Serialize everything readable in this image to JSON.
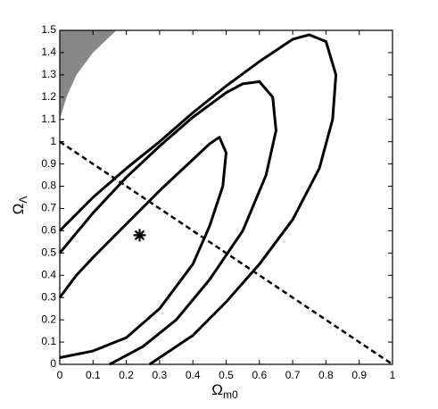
{
  "chart_data": {
    "type": "contour",
    "xlabel": {
      "main": "Ω",
      "sub": "m0"
    },
    "ylabel": {
      "main": "Ω",
      "sub": "Λ"
    },
    "xlim": [
      0,
      1
    ],
    "ylim": [
      0,
      1.5
    ],
    "xticks": [
      0,
      0.1,
      0.2,
      0.3,
      0.4,
      0.5,
      0.6,
      0.7,
      0.8,
      0.9,
      1
    ],
    "yticks": [
      0,
      0.1,
      0.2,
      0.3,
      0.4,
      0.5,
      0.6,
      0.7,
      0.8,
      0.9,
      1,
      1.1,
      1.2,
      1.3,
      1.4,
      1.5
    ],
    "contours": [
      {
        "color": "#000000",
        "x": [
          0,
          0.05,
          0.1,
          0.2,
          0.3,
          0.4,
          0.45,
          0.48,
          0.5,
          0.49,
          0.45,
          0.4,
          0.3,
          0.2,
          0.1,
          0
        ],
        "y": [
          0.3,
          0.4,
          0.48,
          0.63,
          0.78,
          0.92,
          0.99,
          1.02,
          0.95,
          0.8,
          0.62,
          0.45,
          0.25,
          0.12,
          0.06,
          0.03
        ]
      },
      {
        "color": "#000000",
        "x": [
          0,
          0.1,
          0.2,
          0.3,
          0.4,
          0.5,
          0.55,
          0.6,
          0.64,
          0.65,
          0.62,
          0.55,
          0.45,
          0.35,
          0.25,
          0.15
        ],
        "y": [
          0.5,
          0.68,
          0.84,
          0.98,
          1.11,
          1.22,
          1.26,
          1.27,
          1.2,
          1.05,
          0.85,
          0.6,
          0.38,
          0.2,
          0.08,
          0
        ]
      },
      {
        "color": "#000000",
        "x": [
          0,
          0.1,
          0.2,
          0.3,
          0.4,
          0.5,
          0.6,
          0.7,
          0.75,
          0.8,
          0.83,
          0.82,
          0.78,
          0.7,
          0.6,
          0.5,
          0.4,
          0.27
        ],
        "y": [
          0.6,
          0.75,
          0.88,
          1.0,
          1.13,
          1.25,
          1.36,
          1.46,
          1.48,
          1.45,
          1.3,
          1.1,
          0.88,
          0.65,
          0.45,
          0.28,
          0.13,
          0
        ]
      }
    ],
    "excluded_region": {
      "color": "#888888",
      "x": [
        0,
        0.02,
        0.05,
        0.1,
        0.17,
        0
      ],
      "y": [
        1.1,
        1.2,
        1.3,
        1.4,
        1.5,
        1.5
      ]
    },
    "flat_line": {
      "x": [
        0,
        1
      ],
      "y": [
        1,
        0
      ]
    },
    "best_fit": {
      "x": 0.24,
      "y": 0.58
    }
  }
}
